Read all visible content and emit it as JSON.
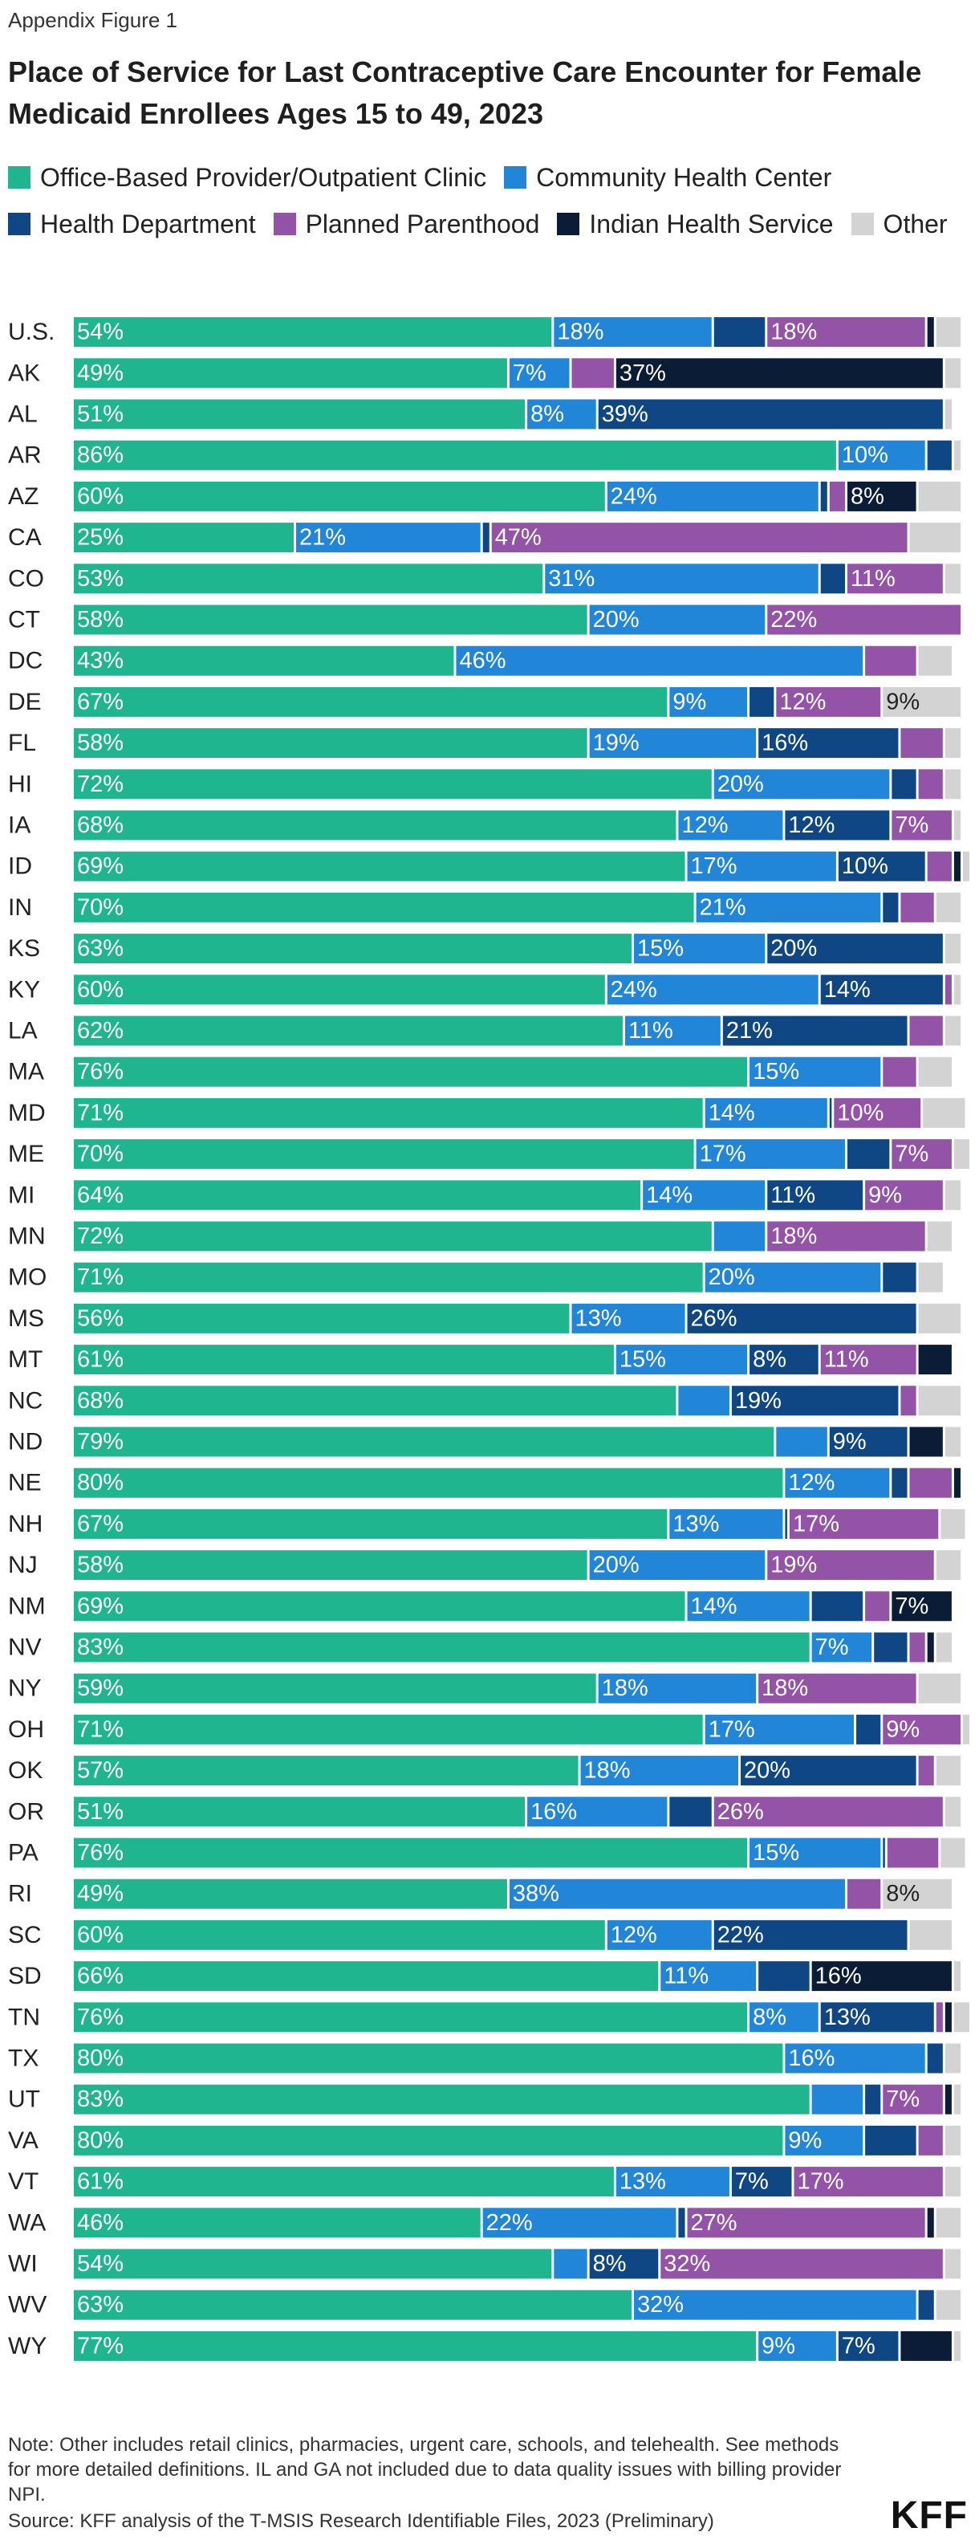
{
  "header": {
    "eyebrow": "Appendix Figure 1",
    "title": "Place of Service for Last Contraceptive Care Encounter for Female Medicaid Enrollees Ages 15 to 49, 2023"
  },
  "legend": [
    {
      "label": "Office-Based Provider/Outpatient Clinic",
      "color": "#1fb58f"
    },
    {
      "label": "Community Health Center",
      "color": "#2185d8"
    },
    {
      "label": "Health Department",
      "color": "#0e4784"
    },
    {
      "label": "Planned Parenthood",
      "color": "#9353a6"
    },
    {
      "label": "Indian Health Service",
      "color": "#0b1c36"
    },
    {
      "label": "Other",
      "color": "#d3d3d3"
    }
  ],
  "chart_data": {
    "type": "bar",
    "orientation": "horizontal",
    "stacked": true,
    "unit": "%",
    "xlim": [
      0,
      100
    ],
    "categories": [
      "U.S.",
      "AK",
      "AL",
      "AR",
      "AZ",
      "CA",
      "CO",
      "CT",
      "DC",
      "DE",
      "FL",
      "HI",
      "IA",
      "ID",
      "IN",
      "KS",
      "KY",
      "LA",
      "MA",
      "MD",
      "ME",
      "MI",
      "MN",
      "MO",
      "MS",
      "MT",
      "NC",
      "ND",
      "NE",
      "NH",
      "NJ",
      "NM",
      "NV",
      "NY",
      "OH",
      "OK",
      "OR",
      "PA",
      "RI",
      "SC",
      "SD",
      "TN",
      "TX",
      "UT",
      "VA",
      "VT",
      "WA",
      "WI",
      "WV",
      "WY"
    ],
    "series": [
      {
        "name": "Office-Based Provider/Outpatient Clinic",
        "color": "#1fb58f",
        "values": [
          54,
          49,
          51,
          86,
          60,
          25,
          53,
          58,
          43,
          67,
          58,
          72,
          68,
          69,
          70,
          63,
          60,
          62,
          76,
          71,
          70,
          64,
          72,
          71,
          56,
          61,
          68,
          79,
          80,
          67,
          58,
          69,
          83,
          59,
          71,
          57,
          51,
          76,
          49,
          60,
          66,
          76,
          80,
          83,
          80,
          61,
          46,
          54,
          63,
          77
        ]
      },
      {
        "name": "Community Health Center",
        "color": "#2185d8",
        "values": [
          18,
          7,
          8,
          10,
          24,
          21,
          31,
          20,
          46,
          9,
          19,
          20,
          12,
          17,
          21,
          15,
          24,
          11,
          15,
          14,
          17,
          14,
          6,
          20,
          13,
          15,
          6,
          6,
          12,
          13,
          20,
          14,
          7,
          18,
          17,
          18,
          16,
          15,
          38,
          12,
          11,
          8,
          16,
          6,
          9,
          13,
          22,
          4,
          32,
          9
        ]
      },
      {
        "name": "Health Department",
        "color": "#0e4784",
        "values": [
          6,
          0,
          39,
          3,
          1,
          1,
          3,
          0,
          0,
          3,
          16,
          3,
          12,
          10,
          2,
          20,
          14,
          21,
          0,
          0.5,
          5,
          11,
          0,
          4,
          26,
          8,
          19,
          9,
          2,
          0.5,
          0,
          6,
          4,
          0,
          3,
          20,
          5,
          0.5,
          0,
          22,
          6,
          13,
          2,
          2,
          6,
          7,
          1,
          8,
          2,
          7
        ]
      },
      {
        "name": "Planned Parenthood",
        "color": "#9353a6",
        "values": [
          18,
          5,
          0,
          0,
          2,
          47,
          11,
          22,
          6,
          12,
          5,
          3,
          7,
          3,
          4,
          0,
          1,
          4,
          4,
          10,
          7,
          9,
          18,
          0,
          0,
          11,
          2,
          0,
          5,
          17,
          19,
          3,
          2,
          18,
          9,
          2,
          26,
          6,
          4,
          0,
          0,
          1,
          0,
          7,
          3,
          17,
          27,
          32,
          0,
          0
        ]
      },
      {
        "name": "Indian Health Service",
        "color": "#0b1c36",
        "values": [
          1,
          37,
          0,
          0,
          8,
          0,
          0,
          0,
          0,
          0,
          0,
          0,
          0,
          1,
          0,
          0,
          0,
          0,
          0,
          0,
          0,
          0,
          0,
          0,
          0,
          4,
          0,
          4,
          1,
          0,
          0,
          7,
          1,
          0,
          0,
          0,
          0,
          0,
          0,
          0,
          16,
          1,
          0,
          1,
          0,
          0,
          1,
          0,
          0,
          6
        ]
      },
      {
        "name": "Other",
        "color": "#d3d3d3",
        "values": [
          3,
          2,
          1,
          1,
          5,
          6,
          2,
          0,
          4,
          9,
          2,
          2,
          1,
          1,
          3,
          2,
          1,
          2,
          4,
          5,
          2,
          2,
          3,
          3,
          5,
          0,
          5,
          2,
          0,
          3,
          3,
          0,
          2,
          5,
          1,
          3,
          2,
          3,
          8,
          5,
          1,
          2,
          2,
          1,
          2,
          2,
          3,
          2,
          3,
          1
        ]
      }
    ],
    "data_labels": [
      [
        "54%",
        "18%",
        "",
        "18%",
        "",
        ""
      ],
      [
        "49%",
        "7%",
        "",
        "",
        "37%",
        ""
      ],
      [
        "51%",
        "8%",
        "39%",
        "",
        "",
        ""
      ],
      [
        "86%",
        "10%",
        "",
        "",
        "",
        ""
      ],
      [
        "60%",
        "24%",
        "",
        "",
        "8%",
        ""
      ],
      [
        "25%",
        "21%",
        "",
        "47%",
        "",
        ""
      ],
      [
        "53%",
        "31%",
        "",
        "11%",
        "",
        ""
      ],
      [
        "58%",
        "20%",
        "",
        "22%",
        "",
        ""
      ],
      [
        "43%",
        "46%",
        "",
        "",
        "",
        ""
      ],
      [
        "67%",
        "9%",
        "",
        "12%",
        "",
        "9%"
      ],
      [
        "58%",
        "19%",
        "16%",
        "",
        "",
        ""
      ],
      [
        "72%",
        "20%",
        "",
        "",
        "",
        ""
      ],
      [
        "68%",
        "12%",
        "12%",
        "7%",
        "",
        ""
      ],
      [
        "69%",
        "17%",
        "10%",
        "",
        "",
        ""
      ],
      [
        "70%",
        "21%",
        "",
        "",
        "",
        ""
      ],
      [
        "63%",
        "15%",
        "20%",
        "",
        "",
        ""
      ],
      [
        "60%",
        "24%",
        "14%",
        "",
        "",
        ""
      ],
      [
        "62%",
        "11%",
        "21%",
        "",
        "",
        ""
      ],
      [
        "76%",
        "15%",
        "",
        "",
        "",
        ""
      ],
      [
        "71%",
        "14%",
        "",
        "10%",
        "",
        ""
      ],
      [
        "70%",
        "17%",
        "",
        "7%",
        "",
        ""
      ],
      [
        "64%",
        "14%",
        "11%",
        "9%",
        "",
        ""
      ],
      [
        "72%",
        "",
        "",
        "18%",
        "",
        ""
      ],
      [
        "71%",
        "20%",
        "",
        "",
        "",
        ""
      ],
      [
        "56%",
        "13%",
        "26%",
        "",
        "",
        ""
      ],
      [
        "61%",
        "15%",
        "8%",
        "11%",
        "",
        ""
      ],
      [
        "68%",
        "",
        "19%",
        "",
        "",
        ""
      ],
      [
        "79%",
        "",
        "9%",
        "",
        "",
        ""
      ],
      [
        "80%",
        "12%",
        "",
        "",
        "",
        ""
      ],
      [
        "67%",
        "13%",
        "",
        "17%",
        "",
        ""
      ],
      [
        "58%",
        "20%",
        "",
        "19%",
        "",
        ""
      ],
      [
        "69%",
        "14%",
        "",
        "",
        "7%",
        ""
      ],
      [
        "83%",
        "7%",
        "",
        "",
        "",
        ""
      ],
      [
        "59%",
        "18%",
        "",
        "18%",
        "",
        ""
      ],
      [
        "71%",
        "17%",
        "",
        "9%",
        "",
        ""
      ],
      [
        "57%",
        "18%",
        "20%",
        "",
        "",
        ""
      ],
      [
        "51%",
        "16%",
        "",
        "26%",
        "",
        ""
      ],
      [
        "76%",
        "15%",
        "",
        "",
        "",
        ""
      ],
      [
        "49%",
        "38%",
        "",
        "",
        "",
        "8%"
      ],
      [
        "60%",
        "12%",
        "22%",
        "",
        "",
        ""
      ],
      [
        "66%",
        "11%",
        "",
        "",
        "16%",
        ""
      ],
      [
        "76%",
        "8%",
        "13%",
        "",
        "",
        ""
      ],
      [
        "80%",
        "16%",
        "",
        "",
        "",
        ""
      ],
      [
        "83%",
        "",
        "",
        "7%",
        "",
        ""
      ],
      [
        "80%",
        "9%",
        "",
        "",
        "",
        ""
      ],
      [
        "61%",
        "13%",
        "7%",
        "17%",
        "",
        ""
      ],
      [
        "46%",
        "22%",
        "",
        "27%",
        "",
        ""
      ],
      [
        "54%",
        "",
        "8%",
        "32%",
        "",
        ""
      ],
      [
        "63%",
        "32%",
        "",
        "",
        "",
        ""
      ],
      [
        "77%",
        "9%",
        "7%",
        "",
        "",
        ""
      ]
    ]
  },
  "footer": {
    "note": "Note: Other includes retail clinics, pharmacies, urgent care, schools, and telehealth. See methods for more detailed definitions. IL and GA not included due to data quality issues with billing provider NPI.",
    "source": "Source: KFF analysis of the T-MSIS Research Identifiable Files, 2023 (Preliminary)",
    "logo": "KFF"
  }
}
